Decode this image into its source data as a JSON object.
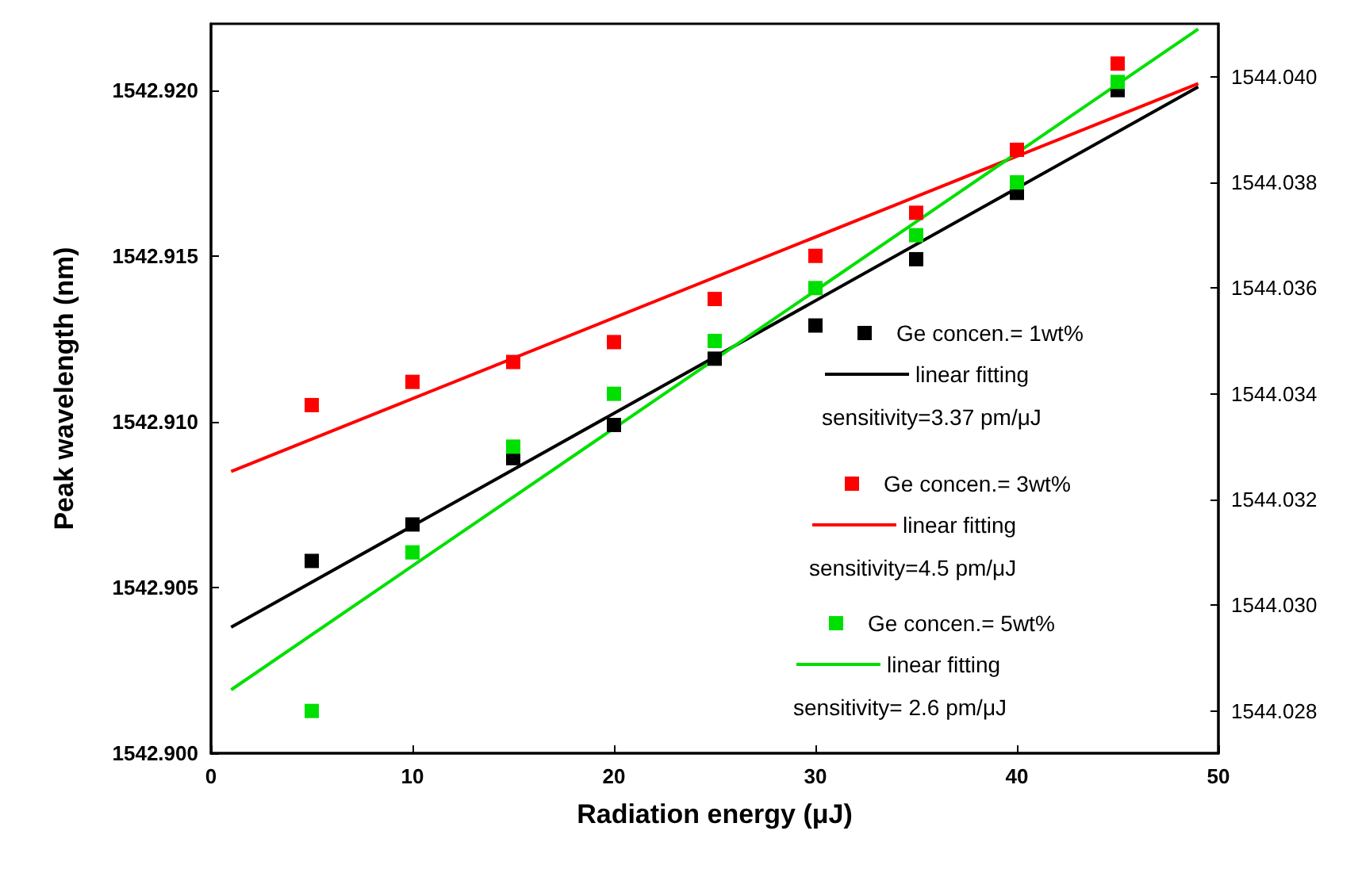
{
  "chart_data": {
    "type": "scatter",
    "xlabel": "Radiation energy (μJ)",
    "ylabel": "Peak wavelength (nm)",
    "xlim": [
      0,
      50
    ],
    "xticks": [
      0,
      10,
      20,
      30,
      40,
      50
    ],
    "ylim": [
      1542.9,
      1542.922
    ],
    "yticks": [
      {
        "value": 1542.9,
        "label": "1542.900"
      },
      {
        "value": 1542.905,
        "label": "1542.905"
      },
      {
        "value": 1542.91,
        "label": "1542.910"
      },
      {
        "value": 1542.915,
        "label": "1542.915"
      },
      {
        "value": 1542.92,
        "label": "1542.920"
      }
    ],
    "y2lim": [
      1544.0272,
      1544.041
    ],
    "y2ticks": [
      {
        "value": 1544.028,
        "label": "1544.028"
      },
      {
        "value": 1544.03,
        "label": "1544.030"
      },
      {
        "value": 1544.032,
        "label": "1544.032"
      },
      {
        "value": 1544.034,
        "label": "1544.034"
      },
      {
        "value": 1544.036,
        "label": "1544.036"
      },
      {
        "value": 1544.038,
        "label": "1544.038"
      },
      {
        "value": 1544.04,
        "label": "1544.040"
      }
    ],
    "grid": false,
    "legend": "right",
    "series": [
      {
        "name": "Ge concen.= 1wt%",
        "marker": "square",
        "color": "#000000",
        "x": [
          5,
          10,
          15,
          20,
          25,
          30,
          35,
          40,
          45
        ],
        "values": [
          1542.9058,
          1542.9069,
          1542.9089,
          1542.9099,
          1542.9119,
          1542.9129,
          1542.9149,
          1542.9169,
          1542.92
        ]
      },
      {
        "name": "linear fitting",
        "type": "line",
        "color": "#000000",
        "x": [
          1,
          49
        ],
        "values": [
          1542.9038,
          1542.9201
        ]
      },
      {
        "name": "Ge concen.= 3wt%",
        "marker": "square",
        "color": "#ff0000",
        "x": [
          5,
          10,
          15,
          20,
          25,
          30,
          35,
          40,
          45
        ],
        "values": [
          1542.9105,
          1542.9112,
          1542.9118,
          1542.9124,
          1542.9137,
          1542.915,
          1542.9163,
          1542.9182,
          1542.9208
        ]
      },
      {
        "name": "linear fitting",
        "type": "line",
        "color": "#ff0000",
        "x": [
          1,
          49
        ],
        "values": [
          1542.9085,
          1542.9202
        ]
      },
      {
        "name": "Ge concen.= 5wt%",
        "marker": "square",
        "axis": "y2",
        "color": "#00e000",
        "x": [
          5,
          10,
          15,
          20,
          25,
          30,
          35,
          40,
          45
        ],
        "values": [
          1544.028,
          1544.031,
          1544.033,
          1544.034,
          1544.035,
          1544.036,
          1544.037,
          1544.038,
          1544.0399
        ]
      },
      {
        "name": "linear fitting",
        "type": "line",
        "axis": "y2",
        "color": "#00e000",
        "x": [
          1,
          49
        ],
        "values": [
          1544.0284,
          1544.0409
        ]
      }
    ],
    "annotations": [
      "sensitivity=3.37 pm/μJ",
      "sensitivity=4.5 pm/μJ",
      "sensitivity= 2.6 pm/μJ"
    ]
  }
}
